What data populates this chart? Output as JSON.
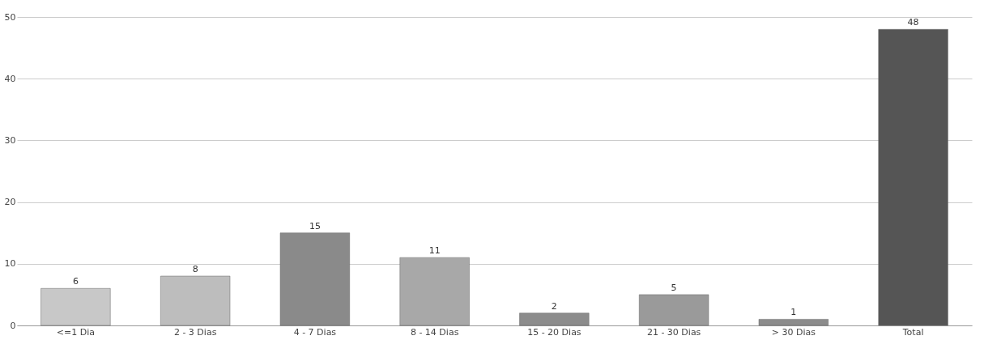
{
  "chart_data": {
    "type": "bar",
    "categories": [
      "<=1 Dia",
      "2 - 3 Dias",
      "4 - 7 Dias",
      "8 - 14 Dias",
      "15 - 20 Dias",
      "21 - 30 Dias",
      "> 30 Dias",
      "Total"
    ],
    "values": [
      6,
      8,
      15,
      11,
      2,
      5,
      1,
      48
    ],
    "colors": [
      "#c8c8c8",
      "#bdbdbd",
      "#8a8a8a",
      "#a8a8a8",
      "#8c8c8c",
      "#9a9a9a",
      "#8c8c8c",
      "#555555"
    ],
    "ylim": [
      0,
      50
    ],
    "yticks": [
      0,
      10,
      20,
      30,
      40,
      50
    ],
    "grid": "y",
    "data_labels": true
  }
}
